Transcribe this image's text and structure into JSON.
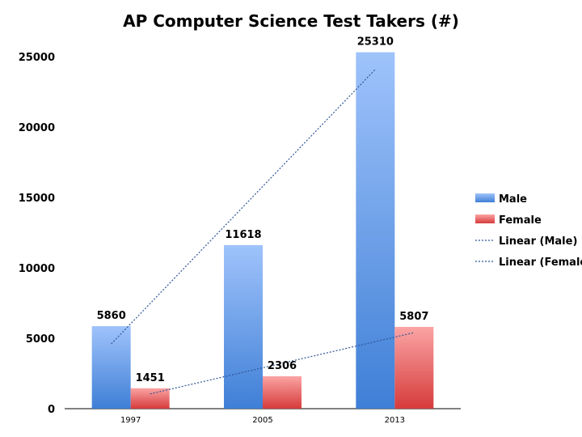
{
  "chart_data": {
    "type": "bar",
    "title": "AP Computer Science Test Takers (#)",
    "categories": [
      "1997",
      "2005",
      "2013"
    ],
    "series": [
      {
        "name": "Male",
        "values": [
          5860,
          11618,
          25310
        ],
        "color": "#5b8fd8"
      },
      {
        "name": "Female",
        "values": [
          1451,
          2306,
          5807
        ],
        "color": "#e36464"
      }
    ],
    "trendlines": [
      {
        "name": "Linear (Male)",
        "of": "Male",
        "start": 4600,
        "end": 24100,
        "color": "#2f5597"
      },
      {
        "name": "Linear (Female)",
        "of": "Female",
        "start": 1050,
        "end": 5400,
        "color": "#2f5597"
      }
    ],
    "ylim": [
      0,
      25000
    ],
    "yticks": [
      0,
      5000,
      10000,
      15000,
      20000,
      25000
    ],
    "xlabel": "",
    "ylabel": "",
    "grid": false,
    "legend_position": "right"
  }
}
